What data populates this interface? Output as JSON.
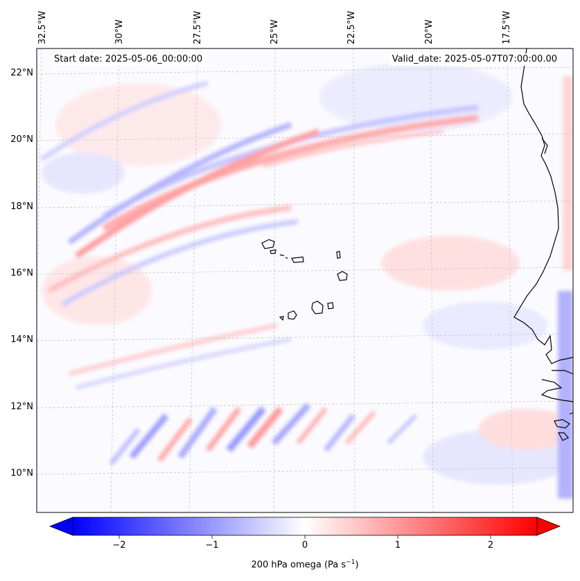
{
  "map": {
    "header": {
      "start_date": "Start date: 2025-05-06_00:00:00",
      "valid_date": "Valid_date: 2025-05-07T07:00:00.00"
    },
    "lon_labels": [
      "32.5°W",
      "30°W",
      "27.5°W",
      "25°W",
      "22.5°W",
      "20°W",
      "17.5°W"
    ],
    "lat_labels": [
      "22°N",
      "20°N",
      "18°N",
      "16°N",
      "14°N",
      "12°N",
      "10°N"
    ]
  },
  "colorbar": {
    "ticks": [
      "−2",
      "−1",
      "0",
      "1",
      "2"
    ],
    "title": "200 hPa omega (Pa s",
    "title_superscript": "−1",
    "title_suffix": ")",
    "colors": {
      "negative": "#0000ff",
      "neutral": "#ffffff",
      "positive": "#ff0000"
    }
  }
}
